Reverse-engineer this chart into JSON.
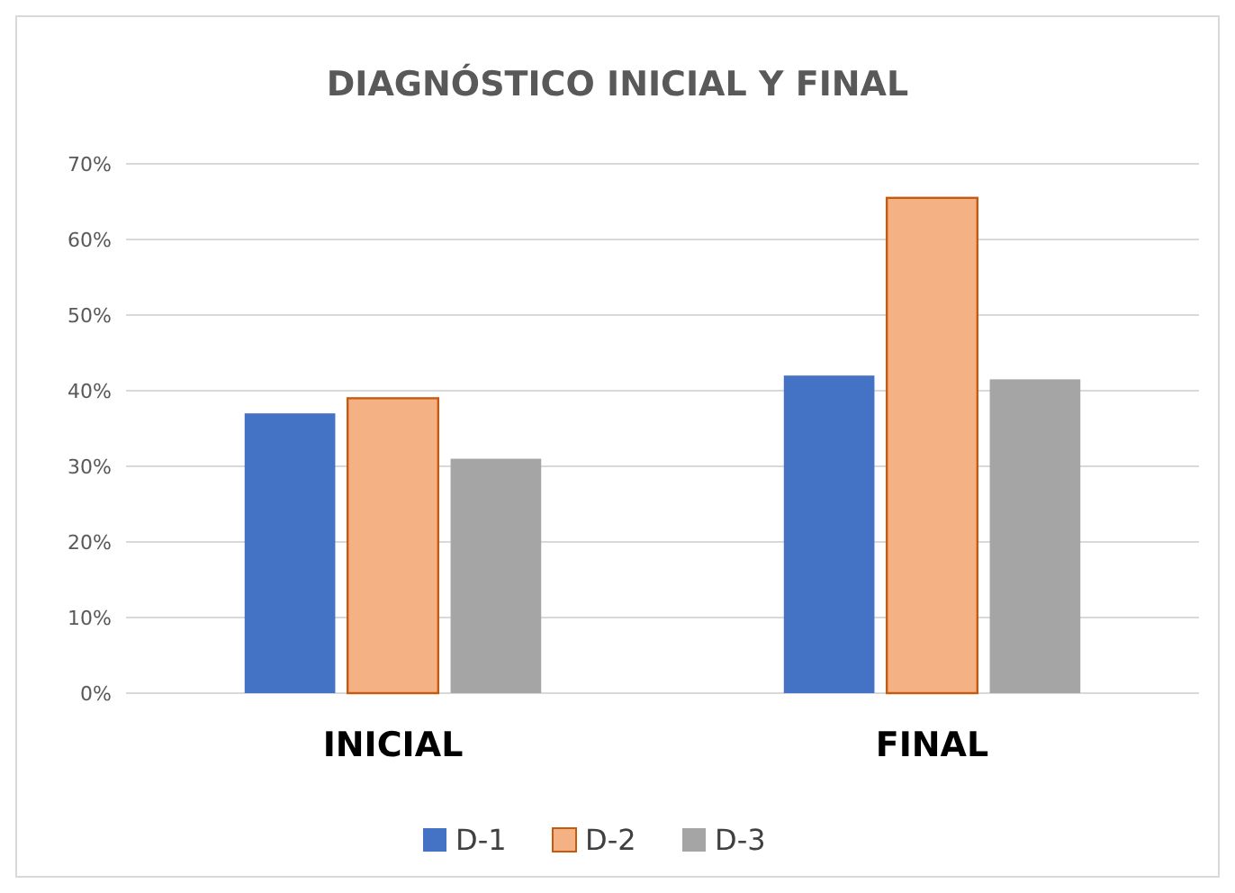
{
  "chart_data": {
    "type": "bar",
    "title": "DIAGNÓSTICO INICIAL Y FINAL",
    "categories": [
      "INICIAL",
      "FINAL"
    ],
    "series": [
      {
        "name": "D-1",
        "color": "#4472c4",
        "values": [
          37,
          42
        ]
      },
      {
        "name": "D-2",
        "color": "#f4b183",
        "values": [
          39,
          65.5
        ]
      },
      {
        "name": "D-3",
        "color": "#a5a5a5",
        "values": [
          31,
          41.5
        ]
      }
    ],
    "ylim": [
      0,
      70
    ],
    "yticks": [
      {
        "value": 0,
        "label": "0%"
      },
      {
        "value": 10,
        "label": "10%"
      },
      {
        "value": 20,
        "label": "20%"
      },
      {
        "value": 30,
        "label": "30%"
      },
      {
        "value": 40,
        "label": "40%"
      },
      {
        "value": 50,
        "label": "50%"
      },
      {
        "value": 60,
        "label": "60%"
      },
      {
        "value": 70,
        "label": "70%"
      }
    ],
    "grid": "y",
    "legend": "bottom"
  }
}
